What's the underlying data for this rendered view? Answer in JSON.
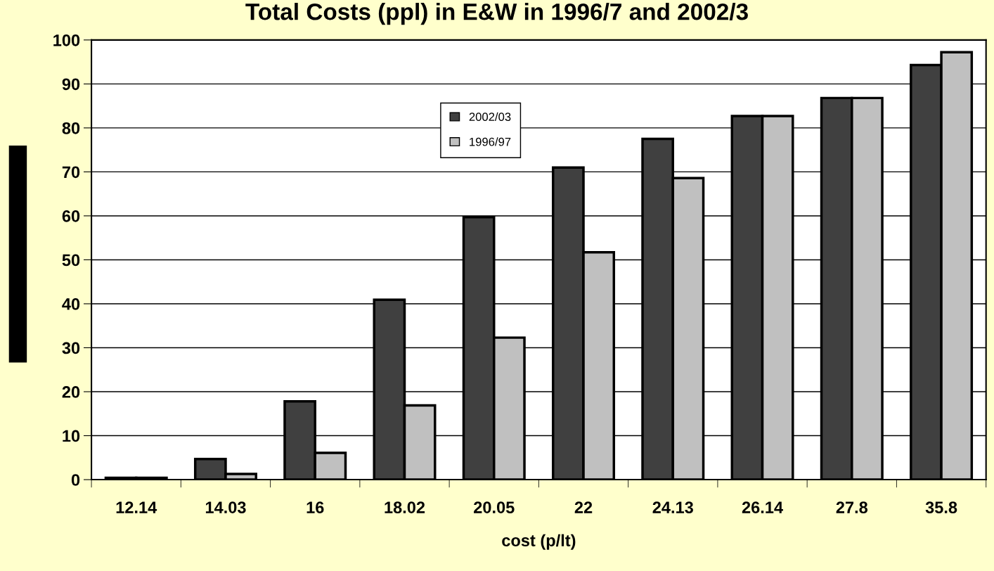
{
  "chart_data": {
    "type": "bar",
    "title": "Total Costs (ppl) in E&W in 1996/7 and 2002/3",
    "xlabel": "cost (p/lt)",
    "categories": [
      "12.14",
      "14.03",
      "16",
      "18.02",
      "20.05",
      "22",
      "24.13",
      "26.14",
      "27.8",
      "35.8"
    ],
    "series": [
      {
        "name": "2002/03",
        "color": "#404040",
        "values": [
          0.4,
          4.7,
          17.8,
          40.9,
          59.7,
          71.0,
          77.5,
          82.7,
          86.8,
          94.3
        ]
      },
      {
        "name": "1996/97",
        "color": "#c0c0c0",
        "values": [
          0.4,
          1.3,
          6.1,
          16.9,
          32.3,
          51.7,
          68.6,
          82.7,
          86.8,
          97.2
        ]
      }
    ],
    "ylim": [
      0,
      100
    ],
    "yticks": [
      0,
      10,
      20,
      30,
      40,
      50,
      60,
      70,
      80,
      90,
      100
    ],
    "grid": "y",
    "legend": "top"
  }
}
